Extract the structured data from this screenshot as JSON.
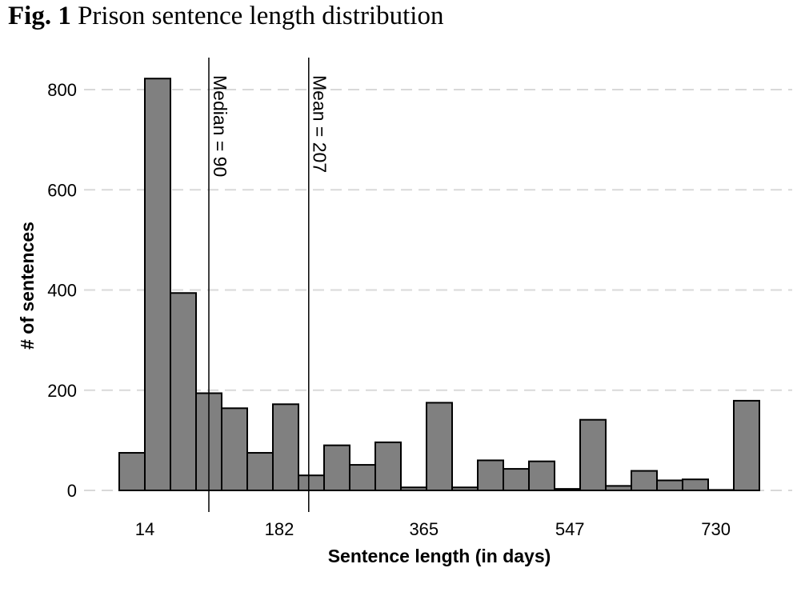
{
  "figure": {
    "label": "Fig. 1",
    "title": "Prison sentence length distribution"
  },
  "chart_data": {
    "type": "bar",
    "title": "Prison sentence length distribution",
    "xlabel": "Sentence length (in days)",
    "ylabel": "# of sentences",
    "bar_fill": "#808080",
    "bar_stroke": "#000000",
    "grid": true,
    "grid_axis": "y",
    "ylim": [
      0,
      850
    ],
    "y_ticks": [
      0,
      200,
      400,
      600,
      800
    ],
    "x_tick_labels": [
      "14",
      "182",
      "365",
      "547",
      "730"
    ],
    "bin_count": 25,
    "values": [
      75,
      822,
      394,
      194,
      164,
      75,
      172,
      30,
      90,
      51,
      96,
      6,
      175,
      6,
      60,
      43,
      58,
      3,
      141,
      9,
      39,
      20,
      22,
      1,
      179
    ],
    "x_tick_bin_positions": [
      1,
      6.25,
      11.9,
      17.6,
      23.3
    ],
    "annotations": [
      {
        "label": "Median = 90",
        "bin_position": 3.5
      },
      {
        "label": "Mean = 207",
        "bin_position": 7.4
      }
    ]
  }
}
